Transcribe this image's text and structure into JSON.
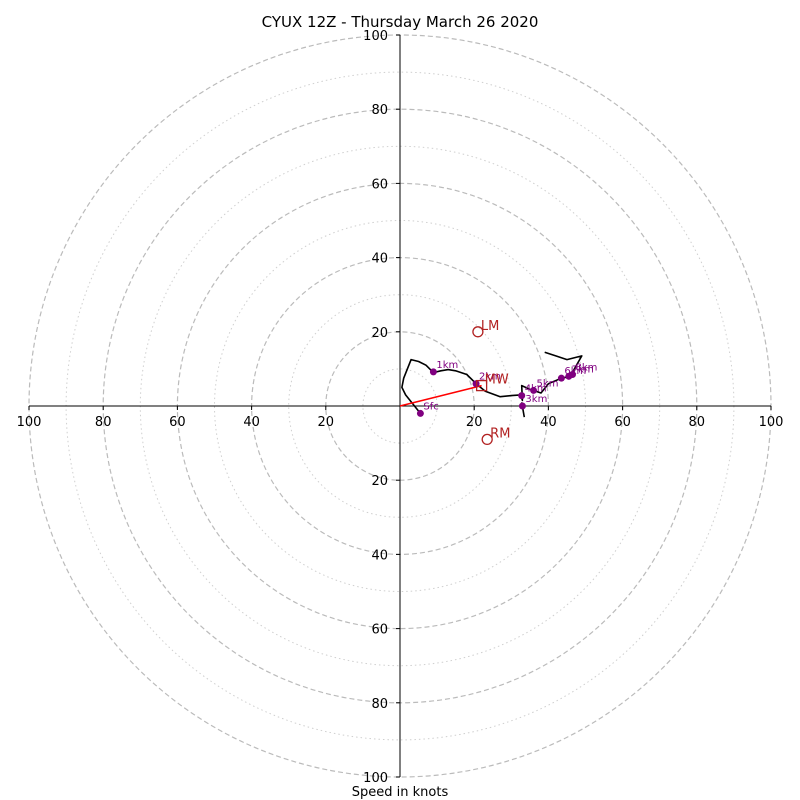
{
  "chart_data": {
    "type": "scatter",
    "title": "CYUX 12Z - Thursday March 26 2020",
    "xlabel": "Speed in knots",
    "ylabel": "",
    "xlim": [
      -100,
      100
    ],
    "ylim": [
      -100,
      100
    ],
    "rings_major": [
      20,
      40,
      60,
      80,
      100
    ],
    "rings_minor": [
      10,
      30,
      50,
      70,
      90
    ],
    "x_ticks": [
      {
        "v": -100,
        "label": "100"
      },
      {
        "v": -80,
        "label": "80"
      },
      {
        "v": -60,
        "label": "60"
      },
      {
        "v": -40,
        "label": "40"
      },
      {
        "v": -20,
        "label": "20"
      },
      {
        "v": 20,
        "label": "20"
      },
      {
        "v": 40,
        "label": "40"
      },
      {
        "v": 60,
        "label": "60"
      },
      {
        "v": 80,
        "label": "80"
      },
      {
        "v": 100,
        "label": "100"
      }
    ],
    "y_ticks": [
      {
        "v": 100,
        "label": "100"
      },
      {
        "v": 80,
        "label": "80"
      },
      {
        "v": 60,
        "label": "60"
      },
      {
        "v": 40,
        "label": "40"
      },
      {
        "v": 20,
        "label": "20"
      },
      {
        "v": -20,
        "label": "20"
      },
      {
        "v": -40,
        "label": "40"
      },
      {
        "v": -60,
        "label": "60"
      },
      {
        "v": -80,
        "label": "80"
      },
      {
        "v": -100,
        "label": "100"
      }
    ],
    "hodograph_trace": [
      [
        5.5,
        -2.0
      ],
      [
        1.5,
        3.0
      ],
      [
        0.5,
        5.0
      ],
      [
        1.0,
        7.5
      ],
      [
        3.0,
        12.5
      ],
      [
        5.0,
        12.0
      ],
      [
        7.0,
        11.0
      ],
      [
        9.0,
        9.0
      ],
      [
        11.0,
        9.5
      ],
      [
        13.0,
        9.8
      ],
      [
        15.0,
        9.5
      ],
      [
        18.0,
        8.5
      ],
      [
        20.5,
        6.0
      ],
      [
        23.0,
        4.0
      ],
      [
        27.0,
        2.5
      ],
      [
        30.0,
        2.8
      ],
      [
        32.5,
        3.0
      ],
      [
        33.0,
        1.5
      ],
      [
        32.8,
        5.5
      ],
      [
        35.0,
        4.5
      ],
      [
        38.0,
        3.5
      ],
      [
        40.0,
        6.0
      ],
      [
        43.5,
        7.5
      ],
      [
        46.0,
        8.0
      ],
      [
        47.0,
        10.0
      ],
      [
        49.0,
        13.5
      ],
      [
        45.0,
        12.5
      ],
      [
        42.0,
        13.5
      ],
      [
        39.0,
        14.5
      ]
    ],
    "tail_segment": [
      [
        32.8,
        1.0
      ],
      [
        33.5,
        -3.0
      ]
    ],
    "height_points": [
      {
        "label": "Sfc",
        "u": 5.5,
        "v": -2.0
      },
      {
        "label": "1km",
        "u": 9.0,
        "v": 9.2
      },
      {
        "label": "2km",
        "u": 20.5,
        "v": 6.0
      },
      {
        "label": "3km",
        "u": 33.0,
        "v": 0.0
      },
      {
        "label": "4km",
        "u": 32.8,
        "v": 2.8
      },
      {
        "label": "5km",
        "u": 36.0,
        "v": 4.2
      },
      {
        "label": "6km",
        "u": 43.5,
        "v": 7.5
      },
      {
        "label": "7km",
        "u": 45.5,
        "v": 8.0
      },
      {
        "label": "8km",
        "u": 46.5,
        "v": 8.5
      }
    ],
    "storm_motion": [
      {
        "label": "LM",
        "u": 21.0,
        "v": 20.0,
        "marker": "circle"
      },
      {
        "label": "RM",
        "u": 23.5,
        "v": -9.0,
        "marker": "circle"
      },
      {
        "label": "MW",
        "u": 22.0,
        "v": 5.5,
        "marker": "square"
      }
    ],
    "shear_vector": {
      "from": [
        0,
        0
      ],
      "to": [
        22.0,
        5.5
      ]
    },
    "colors": {
      "trace": "#000000",
      "points": "#800080",
      "markers": "#b22222",
      "shear": "#ff0000",
      "ring_major": "#bbbbbb",
      "ring_minor": "#cfcfcf"
    }
  }
}
